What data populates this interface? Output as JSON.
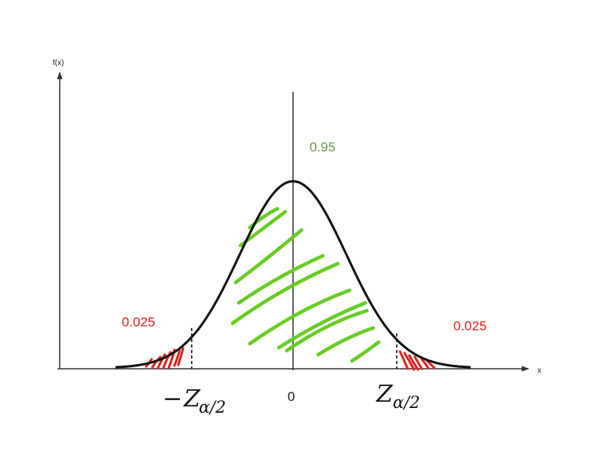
{
  "diagram": {
    "y_axis_label": "f(x)",
    "x_axis_label": "x",
    "center_label": "0",
    "center_area_label": "0.95",
    "left_tail_label": "0.025",
    "right_tail_label": "0.025",
    "left_critical_label": {
      "sign": "−",
      "symbol": "Z",
      "subscript": "α/2"
    },
    "right_critical_label": {
      "symbol": "Z",
      "subscript": "α/2"
    },
    "colors": {
      "curve": "#111111",
      "axes": "#333333",
      "center_shading": "#66cc22",
      "tail_shading": "#dd2222",
      "center_area_text": "#6b9a45",
      "tail_text": "#dd2222"
    }
  }
}
